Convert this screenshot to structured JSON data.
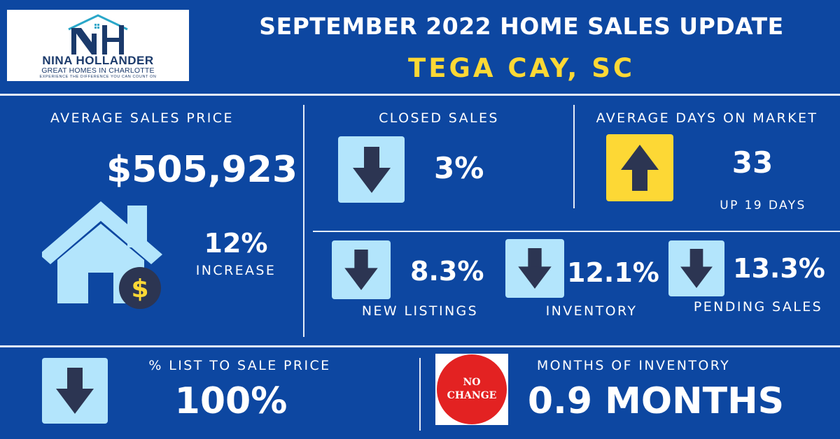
{
  "logo": {
    "monogram": "NH",
    "name": "NINA HOLLANDER",
    "tagline": "GREAT HOMES IN CHARLOTTE",
    "slogan": "EXPERIENCE THE DIFFERENCE YOU CAN COUNT ON"
  },
  "header": {
    "title": "SEPTEMBER 2022 HOME SALES UPDATE",
    "location": "TEGA CAY, SC"
  },
  "colors": {
    "background": "#0d47a1",
    "accent_yellow": "#fdd835",
    "arrow_box_blue": "#b3e5fc",
    "arrow_dark": "#2c3552",
    "house": "#b3e5fc",
    "no_change_red": "#e32222"
  },
  "average_sales_price": {
    "label": "AVERAGE SALES PRICE",
    "value": "$505,923",
    "change": "12%",
    "change_label": "INCREASE",
    "icon": "house-dollar-icon",
    "dollar_sign": "$"
  },
  "closed_sales": {
    "label": "CLOSED SALES",
    "value": "3%",
    "direction": "down",
    "icon": "arrow-down-icon"
  },
  "average_days_on_market": {
    "label": "AVERAGE DAYS ON MARKET",
    "value": "33",
    "note": "UP 19 DAYS",
    "direction": "up",
    "icon": "arrow-up-icon"
  },
  "new_listings": {
    "label": "NEW LISTINGS",
    "value": "8.3%",
    "direction": "down",
    "icon": "arrow-down-icon"
  },
  "inventory": {
    "label": "INVENTORY",
    "value": "12.1%",
    "direction": "down",
    "icon": "arrow-down-icon"
  },
  "pending_sales": {
    "label": "PENDING SALES",
    "value": "13.3%",
    "direction": "down",
    "icon": "arrow-down-icon"
  },
  "list_to_sale_price": {
    "label": "% LIST TO SALE PRICE",
    "value": "100%",
    "direction": "down",
    "icon": "arrow-down-icon"
  },
  "months_of_inventory": {
    "label": "MONTHS OF INVENTORY",
    "value": "0.9 MONTHS",
    "badge_line1": "NO",
    "badge_line2": "CHANGE",
    "icon": "no-change-badge-icon"
  }
}
